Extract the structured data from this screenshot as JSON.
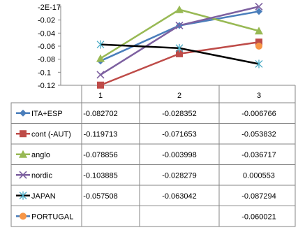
{
  "chart_data": {
    "type": "line",
    "categories": [
      "1",
      "2",
      "3"
    ],
    "yticks": [
      "-2E-17",
      "-0.02",
      "-0.04",
      "-0.06",
      "-0.08",
      "-0.1",
      "-0.12"
    ],
    "ylim": [
      -0.12,
      0.0
    ],
    "grid": false,
    "legend_placement": "data-table-left",
    "series": [
      {
        "name": "ITA+ESP",
        "values": [
          -0.082702,
          -0.028352,
          -0.006766
        ],
        "labels": [
          "-0.082702",
          "-0.028352",
          "-0.006766"
        ],
        "color": "#4a7ebb",
        "marker": "diamond"
      },
      {
        "name": "cont (-AUT)",
        "values": [
          -0.119713,
          -0.071653,
          -0.053832
        ],
        "labels": [
          "-0.119713",
          "-0.071653",
          "-0.053832"
        ],
        "color": "#be4b48",
        "marker": "square"
      },
      {
        "name": "anglo",
        "values": [
          -0.078856,
          -0.003998,
          -0.036717
        ],
        "labels": [
          "-0.078856",
          "-0.003998",
          "-0.036717"
        ],
        "color": "#98b954",
        "marker": "triangle"
      },
      {
        "name": "nordic",
        "values": [
          -0.103885,
          -0.028279,
          0.000553
        ],
        "labels": [
          "-0.103885",
          "-0.028279",
          "0.000553"
        ],
        "color": "#7d60a0",
        "marker": "x"
      },
      {
        "name": "JAPAN",
        "values": [
          -0.057508,
          -0.063042,
          -0.087294
        ],
        "labels": [
          "-0.057508",
          "-0.063042",
          "-0.087294"
        ],
        "color": "#000000",
        "marker": "star",
        "marker_color": "#4bacc6"
      },
      {
        "name": "PORTUGAL",
        "values": [
          null,
          null,
          -0.060021
        ],
        "labels": [
          "",
          "",
          "-0.060021"
        ],
        "color": "#4a7ebb",
        "marker": "circle",
        "marker_color": "#f79646"
      }
    ]
  }
}
